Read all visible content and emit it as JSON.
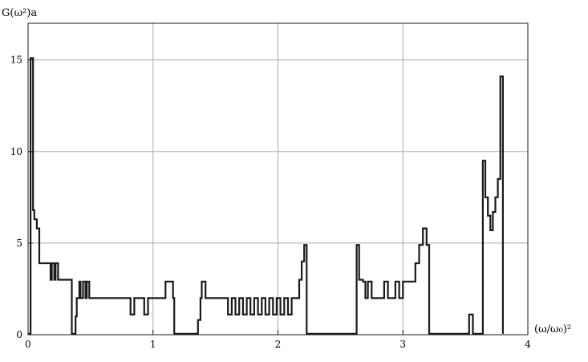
{
  "chart_data": {
    "type": "line",
    "title": "",
    "ylabel": "G(ω²)a",
    "xlabel": "(ω/ω₀)²",
    "xlim": [
      0,
      4
    ],
    "ylim": [
      0,
      17
    ],
    "x_ticks": [
      "0",
      "1",
      "2",
      "3",
      "4"
    ],
    "y_ticks": [
      "0",
      "5",
      "10",
      "15"
    ],
    "x_tick_values": [
      0,
      1,
      2,
      3,
      4
    ],
    "y_tick_values": [
      0,
      5,
      10,
      15
    ],
    "grid": true,
    "legend": "none",
    "colors": {
      "line": "#1a1a1a",
      "grid": "#a8a8a8",
      "frame": "#1a1a1a",
      "background": "#ffffff"
    },
    "series": [
      {
        "style": "step",
        "points": [
          [
            0.0,
            0.05
          ],
          [
            0.02,
            0.05
          ],
          [
            0.02,
            15.1
          ],
          [
            0.04,
            15.1
          ],
          [
            0.04,
            6.8
          ],
          [
            0.05,
            6.8
          ],
          [
            0.05,
            6.3
          ],
          [
            0.07,
            6.3
          ],
          [
            0.07,
            5.8
          ],
          [
            0.09,
            5.8
          ],
          [
            0.09,
            3.9
          ],
          [
            0.18,
            3.9
          ],
          [
            0.18,
            3.0
          ],
          [
            0.19,
            3.0
          ],
          [
            0.19,
            3.9
          ],
          [
            0.21,
            3.9
          ],
          [
            0.21,
            3.0
          ],
          [
            0.22,
            3.0
          ],
          [
            0.22,
            3.9
          ],
          [
            0.24,
            3.9
          ],
          [
            0.24,
            3.0
          ],
          [
            0.35,
            3.0
          ],
          [
            0.35,
            0.05
          ],
          [
            0.38,
            0.05
          ],
          [
            0.38,
            1.0
          ],
          [
            0.39,
            1.0
          ],
          [
            0.39,
            2.0
          ],
          [
            0.41,
            2.0
          ],
          [
            0.41,
            2.9
          ],
          [
            0.42,
            2.9
          ],
          [
            0.42,
            2.0
          ],
          [
            0.44,
            2.0
          ],
          [
            0.44,
            2.9
          ],
          [
            0.46,
            2.9
          ],
          [
            0.46,
            2.0
          ],
          [
            0.47,
            2.0
          ],
          [
            0.47,
            2.9
          ],
          [
            0.49,
            2.9
          ],
          [
            0.49,
            2.0
          ],
          [
            0.82,
            2.0
          ],
          [
            0.82,
            1.1
          ],
          [
            0.85,
            1.1
          ],
          [
            0.85,
            2.0
          ],
          [
            0.93,
            2.0
          ],
          [
            0.93,
            1.1
          ],
          [
            0.96,
            1.1
          ],
          [
            0.96,
            2.0
          ],
          [
            1.1,
            2.0
          ],
          [
            1.1,
            2.9
          ],
          [
            1.16,
            2.9
          ],
          [
            1.16,
            2.0
          ],
          [
            1.17,
            2.0
          ],
          [
            1.17,
            0.05
          ],
          [
            1.36,
            0.05
          ],
          [
            1.36,
            0.8
          ],
          [
            1.38,
            0.8
          ],
          [
            1.38,
            2.0
          ],
          [
            1.39,
            2.0
          ],
          [
            1.39,
            2.9
          ],
          [
            1.42,
            2.9
          ],
          [
            1.42,
            2.0
          ],
          [
            1.6,
            2.0
          ],
          [
            1.6,
            1.1
          ],
          [
            1.63,
            1.1
          ],
          [
            1.63,
            2.0
          ],
          [
            1.66,
            2.0
          ],
          [
            1.66,
            1.1
          ],
          [
            1.69,
            1.1
          ],
          [
            1.69,
            2.0
          ],
          [
            1.72,
            2.0
          ],
          [
            1.72,
            1.1
          ],
          [
            1.75,
            1.1
          ],
          [
            1.75,
            2.0
          ],
          [
            1.78,
            2.0
          ],
          [
            1.78,
            1.1
          ],
          [
            1.81,
            1.1
          ],
          [
            1.81,
            2.0
          ],
          [
            1.84,
            2.0
          ],
          [
            1.84,
            1.1
          ],
          [
            1.87,
            1.1
          ],
          [
            1.87,
            2.0
          ],
          [
            1.9,
            2.0
          ],
          [
            1.9,
            1.1
          ],
          [
            1.93,
            1.1
          ],
          [
            1.93,
            2.0
          ],
          [
            1.96,
            2.0
          ],
          [
            1.96,
            1.1
          ],
          [
            1.99,
            1.1
          ],
          [
            1.99,
            2.0
          ],
          [
            2.02,
            2.0
          ],
          [
            2.02,
            1.1
          ],
          [
            2.05,
            1.1
          ],
          [
            2.05,
            2.0
          ],
          [
            2.08,
            2.0
          ],
          [
            2.08,
            1.1
          ],
          [
            2.11,
            1.1
          ],
          [
            2.11,
            2.0
          ],
          [
            2.17,
            2.0
          ],
          [
            2.17,
            3.0
          ],
          [
            2.19,
            3.0
          ],
          [
            2.19,
            4.0
          ],
          [
            2.21,
            4.0
          ],
          [
            2.21,
            4.9
          ],
          [
            2.23,
            4.9
          ],
          [
            2.23,
            0.05
          ],
          [
            2.63,
            0.05
          ],
          [
            2.63,
            4.9
          ],
          [
            2.65,
            4.9
          ],
          [
            2.65,
            3.0
          ],
          [
            2.68,
            3.0
          ],
          [
            2.68,
            2.9
          ],
          [
            2.7,
            2.9
          ],
          [
            2.7,
            2.0
          ],
          [
            2.72,
            2.0
          ],
          [
            2.72,
            2.9
          ],
          [
            2.75,
            2.9
          ],
          [
            2.75,
            2.0
          ],
          [
            2.85,
            2.0
          ],
          [
            2.85,
            2.9
          ],
          [
            2.88,
            2.9
          ],
          [
            2.88,
            2.0
          ],
          [
            2.94,
            2.0
          ],
          [
            2.94,
            2.9
          ],
          [
            2.97,
            2.9
          ],
          [
            2.97,
            2.0
          ],
          [
            3.0,
            2.0
          ],
          [
            3.0,
            2.9
          ],
          [
            3.1,
            2.9
          ],
          [
            3.1,
            3.9
          ],
          [
            3.13,
            3.9
          ],
          [
            3.13,
            4.9
          ],
          [
            3.16,
            4.9
          ],
          [
            3.16,
            5.8
          ],
          [
            3.19,
            5.8
          ],
          [
            3.19,
            4.9
          ],
          [
            3.21,
            4.9
          ],
          [
            3.21,
            0.05
          ],
          [
            3.53,
            0.05
          ],
          [
            3.53,
            1.1
          ],
          [
            3.56,
            1.1
          ],
          [
            3.56,
            0.05
          ],
          [
            3.64,
            0.05
          ],
          [
            3.64,
            9.5
          ],
          [
            3.66,
            9.5
          ],
          [
            3.66,
            7.5
          ],
          [
            3.68,
            7.5
          ],
          [
            3.68,
            6.5
          ],
          [
            3.7,
            6.5
          ],
          [
            3.7,
            5.7
          ],
          [
            3.72,
            5.7
          ],
          [
            3.72,
            6.7
          ],
          [
            3.74,
            6.7
          ],
          [
            3.74,
            7.5
          ],
          [
            3.76,
            7.5
          ],
          [
            3.76,
            8.5
          ],
          [
            3.78,
            8.5
          ],
          [
            3.78,
            14.1
          ],
          [
            3.8,
            14.1
          ],
          [
            3.8,
            0.05
          ]
        ]
      }
    ]
  }
}
